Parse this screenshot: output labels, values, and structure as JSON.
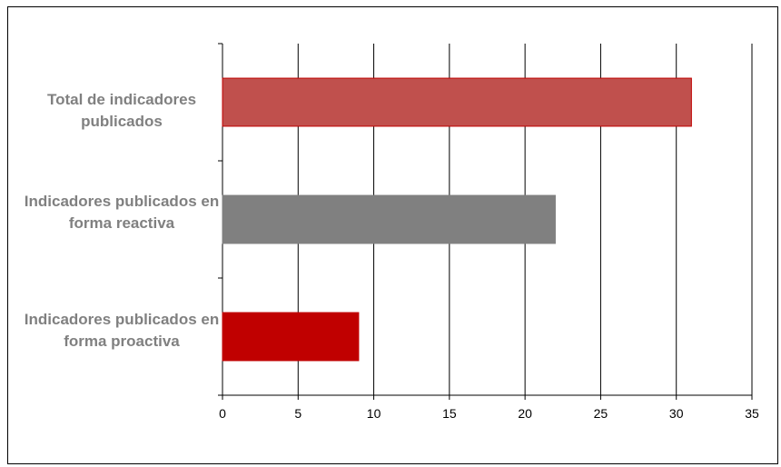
{
  "chart_data": {
    "type": "bar",
    "orientation": "horizontal",
    "title": "",
    "xlabel": "",
    "ylabel": "",
    "categories": [
      "Total de indicadores publicados",
      "Indicadores publicados en forma reactiva",
      "Indicadores publicados en forma proactiva"
    ],
    "values": [
      31,
      22,
      9
    ],
    "bar_colors": [
      "#C0504D",
      "#808080",
      "#C00000"
    ],
    "xlim": [
      0,
      35
    ],
    "xticks": [
      0,
      5,
      10,
      15,
      20,
      25,
      30,
      35
    ],
    "grid": "vertical",
    "legend": "none"
  }
}
